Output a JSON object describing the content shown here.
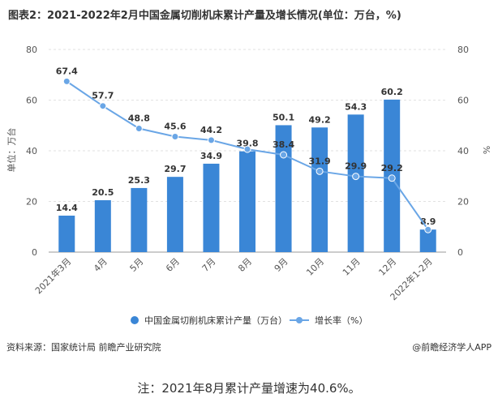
{
  "title": "图表2：2021-2022年2月中国金属切削机床累计产量及增长情况(单位：万台，%)",
  "source": "资料来源：国家统计局 前瞻产业研究院",
  "credit": "@前瞻经济学人APP",
  "note": "注：2021年8月累计产量增速为40.6%。",
  "chart_data": {
    "type": "bar+line",
    "categories": [
      "2021年3月",
      "4月",
      "5月",
      "6月",
      "7月",
      "8月",
      "9月",
      "10月",
      "11月",
      "12月",
      "2022年1-2月"
    ],
    "series": [
      {
        "name": "中国金属切削机床累计产量（万台）",
        "type": "bar",
        "axis": "left",
        "values": [
          14.4,
          20.5,
          25.3,
          29.7,
          34.9,
          39.8,
          50.1,
          49.2,
          54.3,
          60.2,
          8.9
        ]
      },
      {
        "name": "增长率（%）",
        "type": "line",
        "axis": "right",
        "values": [
          67.4,
          57.7,
          48.8,
          45.6,
          44.2,
          40.6,
          38.4,
          31.9,
          29.9,
          29.2,
          8.9
        ]
      }
    ],
    "data_labels": {
      "bar": [
        "14.4",
        "20.5",
        "25.3",
        "29.7",
        "34.9",
        "39.8",
        "50.1",
        "49.2",
        "54.3",
        "60.2",
        "8.9"
      ],
      "line": [
        "67.4",
        "57.7",
        "48.8",
        "45.6",
        "44.2",
        "",
        "38.4",
        "31.9",
        "29.9",
        "29.2",
        ""
      ]
    },
    "ylabel_left": "单位：万台",
    "ylabel_right": "%",
    "ylim_left": [
      0,
      80
    ],
    "ylim_right": [
      0,
      80
    ],
    "yticks": [
      "0",
      "20",
      "40",
      "60",
      "80"
    ],
    "grid": true,
    "colors": {
      "bar": "#3a86d6",
      "line": "#6aa6e6"
    }
  }
}
